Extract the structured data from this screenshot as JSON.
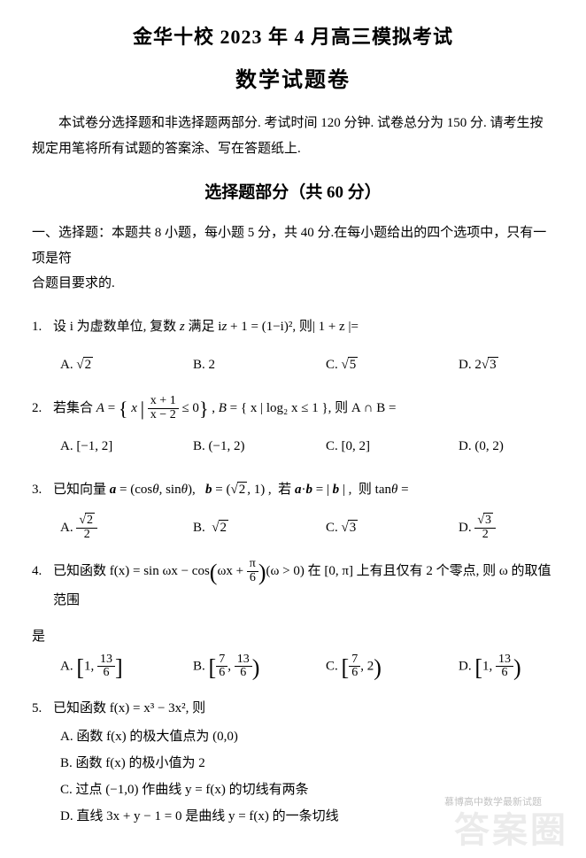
{
  "header": {
    "main_title": "金华十校 2023 年 4 月高三模拟考试",
    "sub_title": "数学试题卷"
  },
  "intro": "本试卷分选择题和非选择题两部分. 考试时间 120 分钟.  试卷总分为 150 分. 请考生按规定用笔将所有试题的答案涂、写在答题纸上.",
  "section": {
    "title": "选择题部分（共 60 分）",
    "part_desc_1": "一、选择题：本题共 8 小题，每小题 5 分，共 40 分.在每小题给出的四个选项中，只有一项是符",
    "part_desc_2": "合题目要求的."
  },
  "q1": {
    "num": "1.",
    "text_prefix": "设 i 为虚数单位, 复数 ",
    "var_z": "z",
    "text_mid": " 满足 i",
    "eq": "z + 1 = (1−i)²",
    "text_tail": ", 则| 1 + z |=",
    "A": "√2",
    "B": "2",
    "C": "√5",
    "D": "2√3"
  },
  "q2": {
    "num": "2.",
    "text_prefix": "若集合 ",
    "A_sym": "A",
    "eq_lhs": " = ",
    "frac_num": "x + 1",
    "frac_den": "x − 2",
    "cond": " ≤ 0",
    "B_sym": "B",
    "B_def": " = { x | log₂ x ≤ 1 }",
    "text_tail": ", 则 A ∩ B =",
    "A": "[−1, 2]",
    "B": "(−1, 2)",
    "C": "[0, 2]",
    "D": "(0, 2)"
  },
  "q3": {
    "num": "3.",
    "text": "已知向量 a = (cosθ, sinθ),   b = (√2, 1) ,  若 a·b = | b | ,  则 tanθ =",
    "A_num": "√2",
    "A_den": "2",
    "B": "√2",
    "C": "√3",
    "D_num": "√3",
    "D_den": "2"
  },
  "q4": {
    "num": "4.",
    "text_prefix": "已知函数 f(x) = sin ωx − cos",
    "arg": "ωx + ",
    "pi6_num": "π",
    "pi6_den": "6",
    "text_mid": "(ω > 0) 在 [0, π] 上有且仅有 2 个零点, 则 ω 的取值范围",
    "tail_line": "是",
    "A_lo": "1",
    "A_hi_num": "13",
    "A_hi_den": "6",
    "B_lo_num": "7",
    "B_lo_den": "6",
    "B_hi_num": "13",
    "B_hi_den": "6",
    "C_lo_num": "7",
    "C_lo_den": "6",
    "C_hi": "2",
    "D_lo": "1",
    "D_hi_num": "13",
    "D_hi_den": "6"
  },
  "q5": {
    "num": "5.",
    "text": "已知函数 f(x) = x³ − 3x²,  则",
    "A": "A. 函数 f(x) 的极大值点为 (0,0)",
    "B": "B. 函数 f(x) 的极小值为 2",
    "C": "C. 过点 (−1,0) 作曲线 y = f(x) 的切线有两条",
    "D": "D. 直线 3x + y − 1 = 0 是曲线 y = f(x) 的一条切线"
  },
  "watermark": "答案圈",
  "wm_small": "慕博高中数学最新试题"
}
